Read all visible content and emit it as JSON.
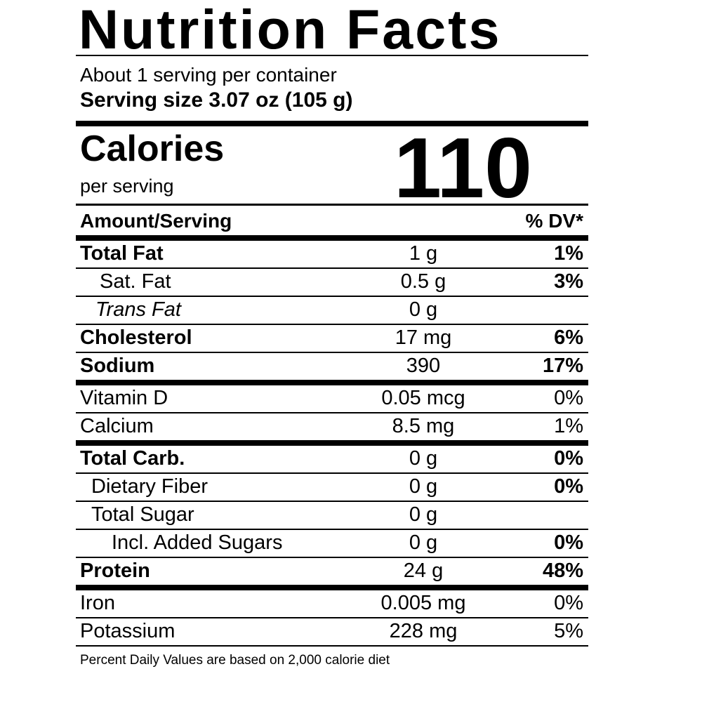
{
  "title": "Nutrition Facts",
  "serving_info": {
    "servings_per_container": "About 1 serving per container",
    "serving_size": "Serving size 3.07 oz (105 g)"
  },
  "calories": {
    "label": "Calories",
    "sub_label": "per serving",
    "value": "110"
  },
  "table": {
    "header": {
      "amount_col": "Amount/Serving",
      "dv_col": "% DV*"
    },
    "rows": [
      {
        "label": "Total Fat",
        "amount": "1 g",
        "dv": "1%",
        "label_style": "bold",
        "dv_bold": true,
        "indent": 0,
        "separator_after": "thin"
      },
      {
        "label": "Sat. Fat",
        "amount": "0.5 g",
        "dv": "3%",
        "label_style": "regular",
        "dv_bold": true,
        "indent": 28,
        "separator_after": "thin"
      },
      {
        "label": "Trans Fat",
        "amount": "0 g",
        "dv": "",
        "label_style": "italic",
        "dv_bold": false,
        "indent": 22,
        "separator_after": "thin"
      },
      {
        "label": "Cholesterol",
        "amount": "17 mg",
        "dv": "6%",
        "label_style": "bold",
        "dv_bold": true,
        "indent": 0,
        "separator_after": "thin"
      },
      {
        "label": "Sodium",
        "amount": "390",
        "dv": "17%",
        "label_style": "bold",
        "dv_bold": true,
        "indent": 0,
        "separator_after": "thick"
      },
      {
        "label": "Vitamin D",
        "amount": "0.05 mcg",
        "dv": "0%",
        "label_style": "regular",
        "dv_bold": false,
        "indent": 0,
        "separator_after": "thin"
      },
      {
        "label": "Calcium",
        "amount": "8.5 mg",
        "dv": "1%",
        "label_style": "regular",
        "dv_bold": false,
        "indent": 0,
        "separator_after": "thick"
      },
      {
        "label": "Total Carb.",
        "amount": "0 g",
        "dv": "0%",
        "label_style": "bold",
        "dv_bold": true,
        "indent": 0,
        "separator_after": "thin"
      },
      {
        "label": "Dietary Fiber",
        "amount": "0 g",
        "dv": "0%",
        "label_style": "regular",
        "dv_bold": true,
        "indent": 16,
        "separator_after": "thin"
      },
      {
        "label": "Total Sugar",
        "amount": "0 g",
        "dv": "",
        "label_style": "regular",
        "dv_bold": false,
        "indent": 16,
        "separator_after": "thin"
      },
      {
        "label": "Incl. Added Sugars",
        "amount": "0 g",
        "dv": "0%",
        "label_style": "regular",
        "dv_bold": true,
        "indent": 45,
        "separator_after": "thin"
      },
      {
        "label": "Protein",
        "amount": "24 g",
        "dv": "48%",
        "label_style": "bold",
        "dv_bold": true,
        "indent": 0,
        "separator_after": "thick"
      },
      {
        "label": "Iron",
        "amount": "0.005 mg",
        "dv": "0%",
        "label_style": "regular",
        "dv_bold": false,
        "indent": 0,
        "separator_after": "thin"
      },
      {
        "label": "Potassium",
        "amount": "228 mg",
        "dv": "5%",
        "label_style": "regular",
        "dv_bold": false,
        "indent": 0,
        "separator_after": "thin"
      }
    ]
  },
  "footnote": "Percent Daily Values are based on 2,000 calorie diet",
  "colors": {
    "text": "#000000",
    "background": "#ffffff"
  }
}
